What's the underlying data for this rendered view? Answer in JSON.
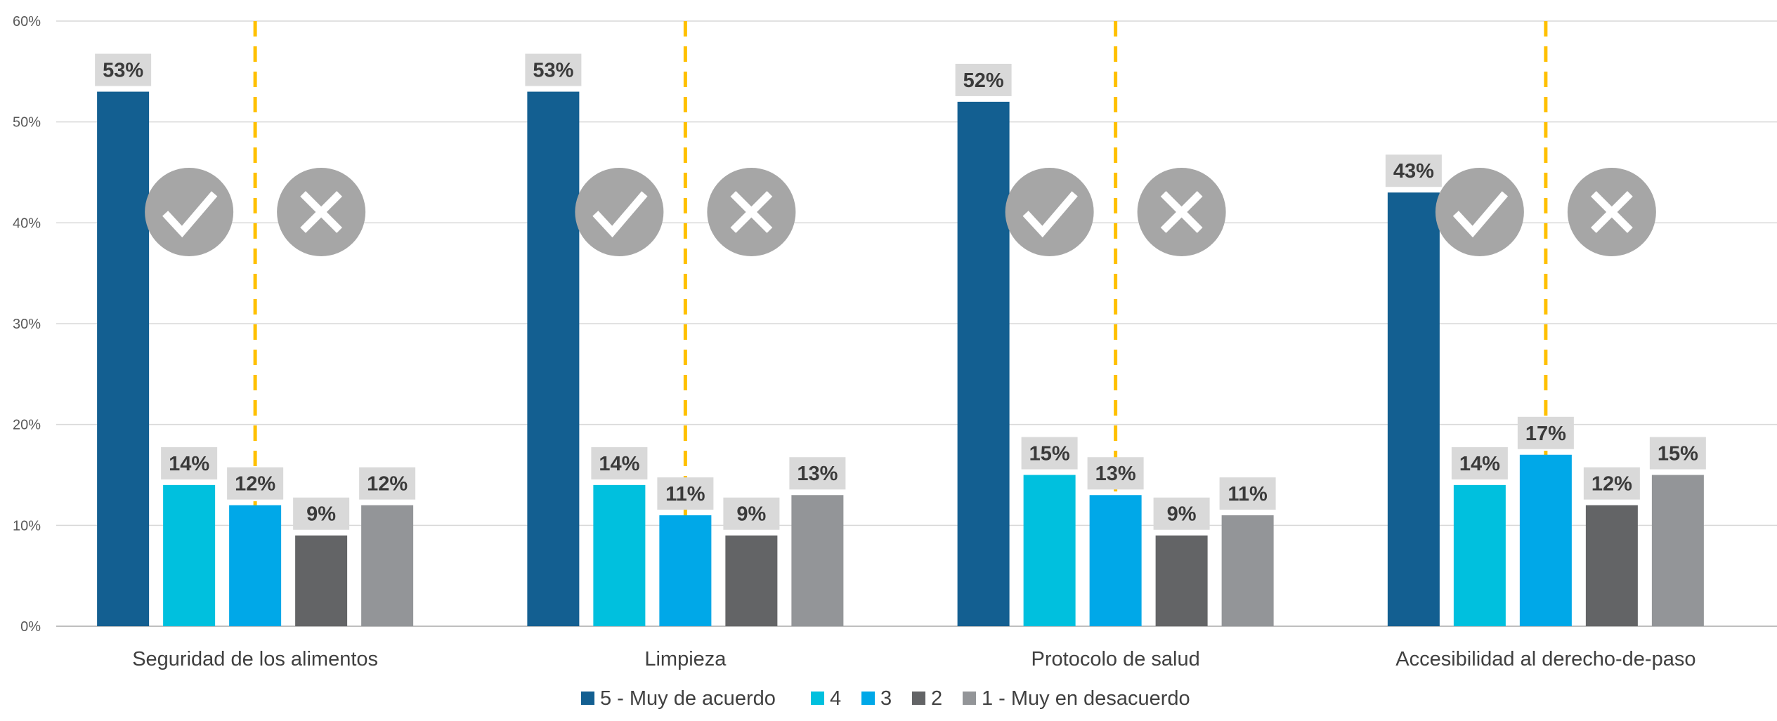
{
  "chart_data": {
    "type": "bar",
    "categories": [
      "Seguridad de los alimentos",
      "Limpieza",
      "Protocolo de salud",
      "Accesibilidad al derecho-de-paso"
    ],
    "series": [
      {
        "name": "5 - Muy de acuerdo",
        "color": "#135f91",
        "values": [
          53,
          53,
          52,
          43
        ]
      },
      {
        "name": "4",
        "color": "#00c0de",
        "values": [
          14,
          14,
          15,
          14
        ]
      },
      {
        "name": "3",
        "color": "#00a8e8",
        "values": [
          12,
          11,
          13,
          17
        ]
      },
      {
        "name": "2",
        "color": "#636466",
        "values": [
          9,
          9,
          9,
          12
        ]
      },
      {
        "name": "1 - Muy en desacuerdo",
        "color": "#939598",
        "values": [
          12,
          13,
          11,
          15
        ]
      }
    ],
    "value_suffix": "%",
    "ylim": [
      0,
      60
    ],
    "yticks": [
      0,
      10,
      20,
      30,
      40,
      50,
      60
    ],
    "ytick_labels": [
      "0%",
      "10%",
      "20%",
      "30%",
      "40%",
      "50%",
      "60%"
    ],
    "xlabel": "",
    "ylabel": "",
    "grid": true,
    "legend_position": "bottom",
    "data_label_background": "#d9d9d9",
    "divider_line_color": "#ffc000",
    "icons": {
      "agree": "checkmark-icon",
      "disagree": "cross-icon",
      "color": "#a6a6a6"
    }
  }
}
